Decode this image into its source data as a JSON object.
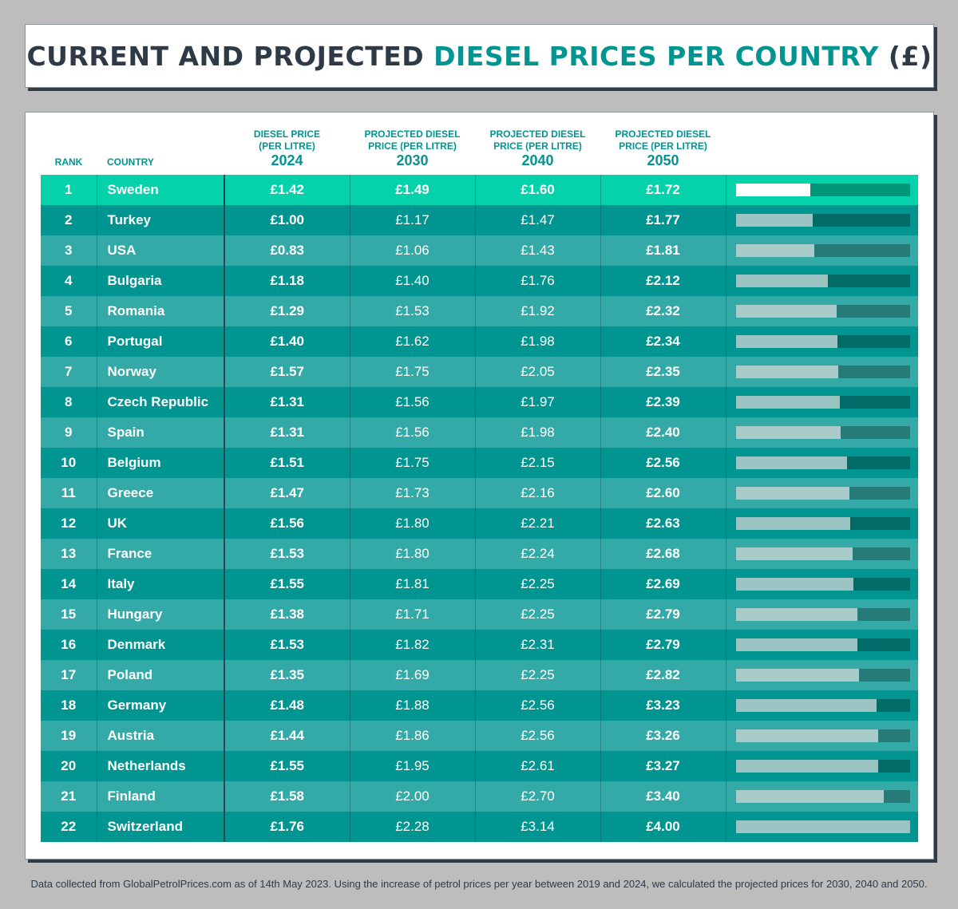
{
  "title": {
    "part1": "CURRENT AND PROJECTED ",
    "part2": "DIESEL PRICES PER COUNTRY",
    "part3": " (£)"
  },
  "colors": {
    "title_dark": "#2e3a45",
    "accent": "#009591",
    "top_row": "#05d1aa",
    "row_even": "#009591",
    "row_odd": "#33aaa8"
  },
  "chart_data": {
    "type": "table",
    "columns": [
      {
        "label": "RANK"
      },
      {
        "label": "COUNTRY"
      },
      {
        "label": "DIESEL PRICE",
        "label2": "(PER LITRE)",
        "year": "2024"
      },
      {
        "label": "PROJECTED DIESEL",
        "label2": "PRICE (PER LITRE)",
        "year": "2030"
      },
      {
        "label": "PROJECTED DIESEL",
        "label2": "PRICE (PER LITRE)",
        "year": "2040"
      },
      {
        "label": "PROJECTED DIESEL",
        "label2": "PRICE (PER LITRE)",
        "year": "2050"
      }
    ],
    "bar_column": "2050",
    "bar_max": 4.0,
    "rows": [
      {
        "rank": "1",
        "country": "Sweden",
        "p2024": "£1.42",
        "p2030": "£1.49",
        "p2040": "£1.60",
        "p2050": "£1.72",
        "v2050": 1.72
      },
      {
        "rank": "2",
        "country": "Turkey",
        "p2024": "£1.00",
        "p2030": "£1.17",
        "p2040": "£1.47",
        "p2050": "£1.77",
        "v2050": 1.77
      },
      {
        "rank": "3",
        "country": "USA",
        "p2024": "£0.83",
        "p2030": "£1.06",
        "p2040": "£1.43",
        "p2050": "£1.81",
        "v2050": 1.81
      },
      {
        "rank": "4",
        "country": "Bulgaria",
        "p2024": "£1.18",
        "p2030": "£1.40",
        "p2040": "£1.76",
        "p2050": "£2.12",
        "v2050": 2.12
      },
      {
        "rank": "5",
        "country": "Romania",
        "p2024": "£1.29",
        "p2030": "£1.53",
        "p2040": "£1.92",
        "p2050": "£2.32",
        "v2050": 2.32
      },
      {
        "rank": "6",
        "country": "Portugal",
        "p2024": "£1.40",
        "p2030": "£1.62",
        "p2040": "£1.98",
        "p2050": "£2.34",
        "v2050": 2.34
      },
      {
        "rank": "7",
        "country": "Norway",
        "p2024": "£1.57",
        "p2030": "£1.75",
        "p2040": "£2.05",
        "p2050": "£2.35",
        "v2050": 2.35
      },
      {
        "rank": "8",
        "country": "Czech Republic",
        "p2024": "£1.31",
        "p2030": "£1.56",
        "p2040": "£1.97",
        "p2050": "£2.39",
        "v2050": 2.39
      },
      {
        "rank": "9",
        "country": "Spain",
        "p2024": "£1.31",
        "p2030": "£1.56",
        "p2040": "£1.98",
        "p2050": "£2.40",
        "v2050": 2.4
      },
      {
        "rank": "10",
        "country": "Belgium",
        "p2024": "£1.51",
        "p2030": "£1.75",
        "p2040": "£2.15",
        "p2050": "£2.56",
        "v2050": 2.56
      },
      {
        "rank": "11",
        "country": "Greece",
        "p2024": "£1.47",
        "p2030": "£1.73",
        "p2040": "£2.16",
        "p2050": "£2.60",
        "v2050": 2.6
      },
      {
        "rank": "12",
        "country": "UK",
        "p2024": "£1.56",
        "p2030": "£1.80",
        "p2040": "£2.21",
        "p2050": "£2.63",
        "v2050": 2.63
      },
      {
        "rank": "13",
        "country": "France",
        "p2024": "£1.53",
        "p2030": "£1.80",
        "p2040": "£2.24",
        "p2050": "£2.68",
        "v2050": 2.68
      },
      {
        "rank": "14",
        "country": "Italy",
        "p2024": "£1.55",
        "p2030": "£1.81",
        "p2040": "£2.25",
        "p2050": "£2.69",
        "v2050": 2.69
      },
      {
        "rank": "15",
        "country": "Hungary",
        "p2024": "£1.38",
        "p2030": "£1.71",
        "p2040": "£2.25",
        "p2050": "£2.79",
        "v2050": 2.79
      },
      {
        "rank": "16",
        "country": "Denmark",
        "p2024": "£1.53",
        "p2030": "£1.82",
        "p2040": "£2.31",
        "p2050": "£2.79",
        "v2050": 2.79
      },
      {
        "rank": "17",
        "country": "Poland",
        "p2024": "£1.35",
        "p2030": "£1.69",
        "p2040": "£2.25",
        "p2050": "£2.82",
        "v2050": 2.82
      },
      {
        "rank": "18",
        "country": "Germany",
        "p2024": "£1.48",
        "p2030": "£1.88",
        "p2040": "£2.56",
        "p2050": "£3.23",
        "v2050": 3.23
      },
      {
        "rank": "19",
        "country": "Austria",
        "p2024": "£1.44",
        "p2030": "£1.86",
        "p2040": "£2.56",
        "p2050": "£3.26",
        "v2050": 3.26
      },
      {
        "rank": "20",
        "country": "Netherlands",
        "p2024": "£1.55",
        "p2030": "£1.95",
        "p2040": "£2.61",
        "p2050": "£3.27",
        "v2050": 3.27
      },
      {
        "rank": "21",
        "country": "Finland",
        "p2024": "£1.58",
        "p2030": "£2.00",
        "p2040": "£2.70",
        "p2050": "£3.40",
        "v2050": 3.4
      },
      {
        "rank": "22",
        "country": "Switzerland",
        "p2024": "£1.76",
        "p2030": "£2.28",
        "p2040": "£3.14",
        "p2050": "£4.00",
        "v2050": 4.0
      }
    ]
  },
  "footnote": "Data collected from GlobalPetrolPrices.com as of 14th May 2023. Using the increase of petrol prices per year between 2019 and 2024, we calculated the projected prices for 2030, 2040 and 2050."
}
